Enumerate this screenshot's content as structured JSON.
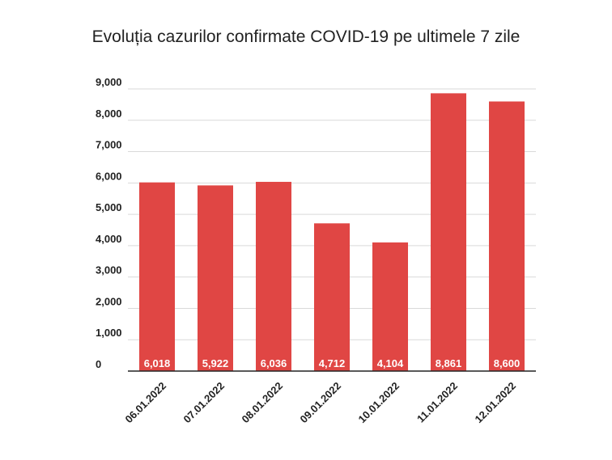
{
  "chart_data": {
    "type": "bar",
    "title": "Evoluția cazurilor confirmate COVID-19 pe ultimele 7 zile",
    "xlabel": "",
    "ylabel": "",
    "categories": [
      "06.01.2022",
      "07.01.2022",
      "08.01.2022",
      "09.01.2022",
      "10.01.2022",
      "11.01.2022",
      "12.01.2022"
    ],
    "values": [
      6018,
      5922,
      6036,
      4712,
      4104,
      8861,
      8600
    ],
    "value_labels": [
      "6,018",
      "5,922",
      "6,036",
      "4,712",
      "4,104",
      "8,861",
      "8,600"
    ],
    "ylim": [
      0,
      9000
    ],
    "yticks": [
      0,
      1000,
      2000,
      3000,
      4000,
      5000,
      6000,
      7000,
      8000,
      9000
    ],
    "ytick_labels": [
      "0",
      "1,000",
      "2,000",
      "3,000",
      "4,000",
      "5,000",
      "6,000",
      "7,000",
      "8,000",
      "9,000"
    ],
    "grid": true,
    "legend": "none",
    "bar_color": "#e04644"
  }
}
